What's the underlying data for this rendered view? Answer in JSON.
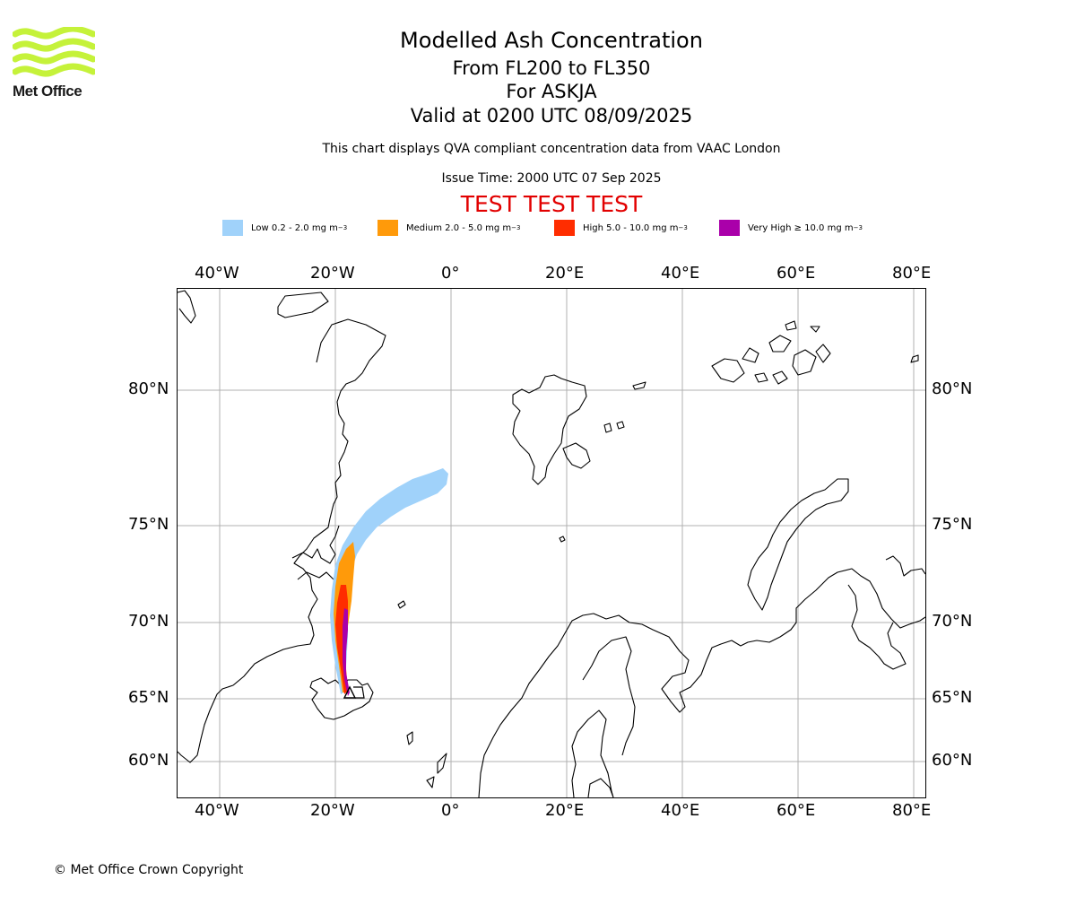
{
  "brand": {
    "name": "Met Office",
    "logo_color": "#c5f23a"
  },
  "header": {
    "title": "Modelled Ash Concentration",
    "levels": "From FL200 to FL350",
    "volcano": "For ASKJA",
    "valid": "Valid at 0200 UTC 08/09/2025",
    "note": "This chart displays QVA compliant concentration data from VAAC London",
    "issue": "Issue Time: 2000 UTC 07 Sep 2025",
    "test_banner": "TEST TEST TEST",
    "test_color": "#e20000"
  },
  "legend": [
    {
      "label": "Low 0.2 - 2.0 mg m",
      "color": "#a0d2fa"
    },
    {
      "label": "Medium 2.0 - 5.0 mg m",
      "color": "#ff9a0a"
    },
    {
      "label": "High 5.0 - 10.0 mg m",
      "color": "#ff2d00"
    },
    {
      "label": "Very High ≥ 10.0 mg m",
      "color": "#aa00aa"
    }
  ],
  "legend_exponent": "−3",
  "map": {
    "lon_labels": [
      "40°W",
      "20°W",
      "0°",
      "20°E",
      "40°E",
      "60°E",
      "80°E"
    ],
    "lat_labels": [
      "80°N",
      "75°N",
      "70°N",
      "65°N",
      "60°N"
    ],
    "gridlines": true,
    "source_marker": "black triangle at Askja, Iceland"
  },
  "footer": {
    "copyright": "© Met Office Crown Copyright"
  }
}
